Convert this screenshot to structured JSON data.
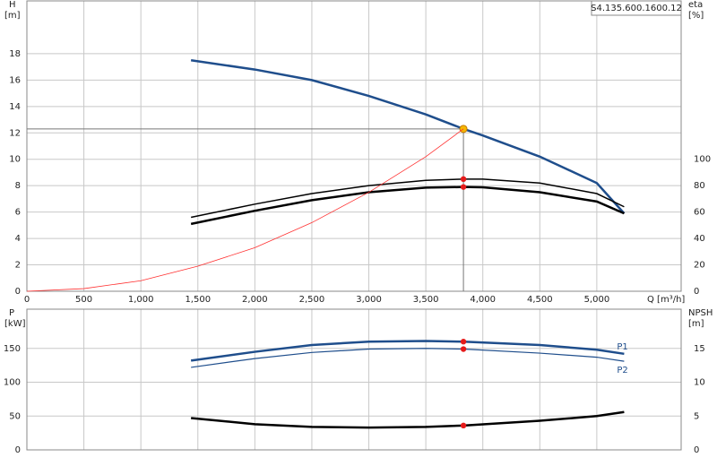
{
  "chart_data": [
    {
      "type": "line",
      "title": "S4.135.600.1600.12",
      "y_label": "H",
      "y_unit": "[m]",
      "y2_label": "eta",
      "y2_unit": "[%]",
      "x_label": "Q [m³/h]",
      "xlim": [
        0,
        5740
      ],
      "xticks": [
        0,
        500,
        {
          "value": 1000,
          "label": "1,000"
        },
        {
          "value": 1500,
          "label": "1,500"
        },
        {
          "value": 2000,
          "label": "2,000"
        },
        {
          "value": 2500,
          "label": "2,500"
        },
        {
          "value": 3000,
          "label": "3,000"
        },
        {
          "value": 3500,
          "label": "3,500"
        },
        {
          "value": 4000,
          "label": "4,000"
        },
        {
          "value": 4500,
          "label": "4,500"
        },
        {
          "value": 5000,
          "label": "5,000"
        }
      ],
      "ylim": [
        0,
        22
      ],
      "yticks": [
        0,
        2,
        4,
        6,
        8,
        10,
        12,
        14,
        16,
        18
      ],
      "y2lim": [
        0,
        220
      ],
      "y2ticks": [
        0,
        20,
        40,
        60,
        80,
        100
      ],
      "grid": true,
      "duty_point": {
        "x": 3830,
        "y": 12.3
      },
      "series": [
        {
          "color": "#1f4e8c",
          "width": 2.5,
          "x": [
            1440,
            2000,
            2500,
            3000,
            3500,
            3830,
            4000,
            4500,
            5000,
            5240
          ],
          "values": [
            17.5,
            16.8,
            16.0,
            14.8,
            13.4,
            12.3,
            11.8,
            10.2,
            8.2,
            5.9
          ],
          "marker": {
            "x": 3830,
            "value": 12.3,
            "color": "#f5b800"
          }
        },
        {
          "color": "#000000",
          "width": 1.5,
          "axis": "y2",
          "x": [
            1440,
            2000,
            2500,
            3000,
            3500,
            3830,
            4000,
            4500,
            5000,
            5240
          ],
          "values": [
            56,
            66,
            74,
            80,
            84,
            85,
            85,
            82,
            74,
            64
          ],
          "marker": {
            "x": 3830,
            "value": 85,
            "color": "#e51b1b"
          }
        },
        {
          "color": "#000000",
          "width": 2.5,
          "axis": "y2",
          "x": [
            1440,
            2000,
            2500,
            3000,
            3500,
            3830,
            4000,
            4500,
            5000,
            5240
          ],
          "values": [
            51,
            61,
            69,
            75,
            78.5,
            79,
            78.8,
            75,
            68,
            59
          ],
          "marker": {
            "x": 3830,
            "value": 79,
            "color": "#e51b1b"
          }
        },
        {
          "color": "#ff3030",
          "width": 0.8,
          "x": [
            0,
            500,
            1000,
            1500,
            2000,
            2500,
            3000,
            3500,
            3830
          ],
          "values": [
            0,
            0.2,
            0.8,
            1.9,
            3.3,
            5.2,
            7.5,
            10.2,
            12.3
          ]
        }
      ]
    },
    {
      "type": "line",
      "y_label": "P",
      "y_unit": "[kW]",
      "y2_label": "NPSH",
      "y2_unit": "[m]",
      "xlim": [
        0,
        5740
      ],
      "xticks": [
        0,
        500,
        1000,
        1500,
        2000,
        2500,
        3000,
        3500,
        4000,
        4500,
        5000
      ],
      "x_tick_labels": false,
      "ylim": [
        0,
        208
      ],
      "yticks": [
        0,
        50,
        100,
        150
      ],
      "y2lim": [
        0,
        20.8
      ],
      "y2ticks": [
        0,
        5,
        10,
        15
      ],
      "grid": true,
      "series": [
        {
          "name": "P1",
          "color": "#1f4e8c",
          "width": 2.5,
          "x": [
            1440,
            2000,
            2500,
            3000,
            3500,
            3830,
            4500,
            5000,
            5240
          ],
          "values": [
            132,
            145,
            155,
            160,
            161,
            160,
            155,
            148,
            142
          ],
          "marker": {
            "x": 3830,
            "value": 160,
            "color": "#e51b1b"
          }
        },
        {
          "name": "P2",
          "color": "#1f4e8c",
          "width": 1.2,
          "x": [
            1440,
            2000,
            2500,
            3000,
            3500,
            3830,
            4500,
            5000,
            5240
          ],
          "values": [
            122,
            135,
            144,
            149,
            150,
            149,
            143,
            137,
            131
          ],
          "marker": {
            "x": 3830,
            "value": 149,
            "color": "#e51b1b"
          }
        },
        {
          "color": "#000000",
          "width": 2.5,
          "axis": "y2",
          "x": [
            1440,
            2000,
            2500,
            3000,
            3500,
            3830,
            4500,
            5000,
            5240
          ],
          "values": [
            4.7,
            3.8,
            3.4,
            3.3,
            3.4,
            3.6,
            4.3,
            5.0,
            5.6
          ],
          "marker": {
            "x": 3830,
            "value": 3.6,
            "color": "#e51b1b"
          }
        }
      ]
    }
  ]
}
